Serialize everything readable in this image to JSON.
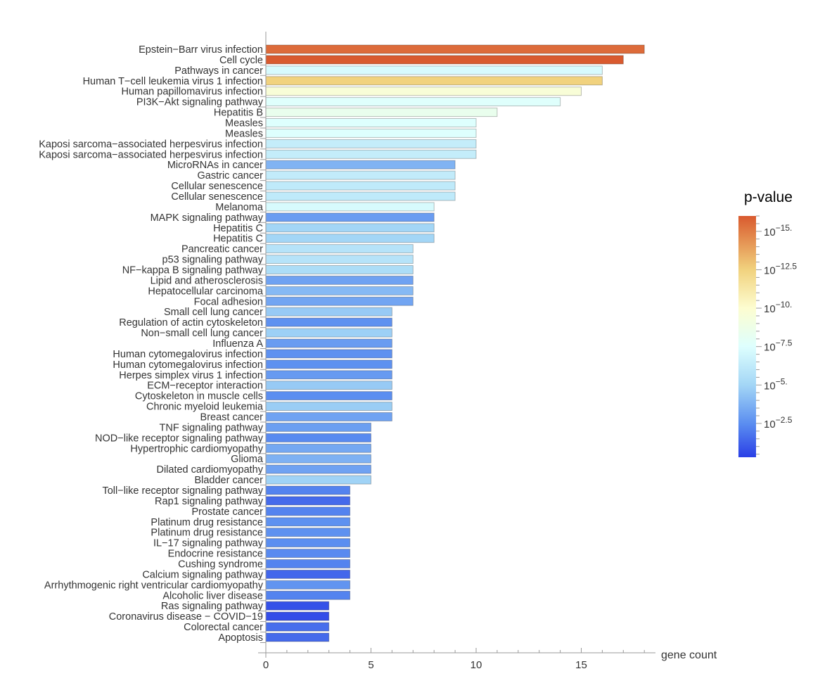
{
  "chart_data": {
    "type": "bar",
    "orientation": "horizontal",
    "xlabel": "gene count",
    "xlim": [
      0,
      18
    ],
    "xticks": [
      0,
      5,
      10,
      15
    ],
    "grid": false,
    "color_legend": {
      "title": "p-value",
      "placement": "right",
      "scale": "log10",
      "range_log10": [
        -16,
        -0.3
      ],
      "ticks": [
        {
          "exp": -15,
          "label": "10",
          "sup": "−15."
        },
        {
          "exp": -12.5,
          "label": "10",
          "sup": "−12.5"
        },
        {
          "exp": -10,
          "label": "10",
          "sup": "−10."
        },
        {
          "exp": -7.5,
          "label": "10",
          "sup": "−7.5"
        },
        {
          "exp": -5,
          "label": "10",
          "sup": "−5."
        },
        {
          "exp": -2.5,
          "label": "10",
          "sup": "−2.5"
        }
      ],
      "colors": [
        {
          "at": -0.3,
          "color": "#2a3fe6"
        },
        {
          "at": -2.5,
          "color": "#5b8ef0"
        },
        {
          "at": -5,
          "color": "#a3d6f6"
        },
        {
          "at": -7.5,
          "color": "#defffe"
        },
        {
          "at": -10,
          "color": "#fdfdd0"
        },
        {
          "at": -12.5,
          "color": "#f1d27e"
        },
        {
          "at": -15,
          "color": "#e07c44"
        },
        {
          "at": -16,
          "color": "#d95a2f"
        }
      ]
    },
    "categories": [
      "Epstein−Barr virus infection",
      "Cell cycle",
      "Pathways in cancer",
      "Human T−cell leukemia virus 1 infection",
      "Human papillomavirus infection",
      "PI3K−Akt signaling pathway",
      "Hepatitis B",
      "Measles",
      "Measles",
      "Kaposi sarcoma−associated herpesvirus infection",
      "Kaposi sarcoma−associated herpesvirus infection",
      "MicroRNAs in cancer",
      "Gastric cancer",
      "Cellular senescence",
      "Cellular senescence",
      "Melanoma",
      "MAPK signaling pathway",
      "Hepatitis C",
      "Hepatitis C",
      "Pancreatic cancer",
      "p53 signaling pathway",
      "NF−kappa B signaling pathway",
      "Lipid and atherosclerosis",
      "Hepatocellular carcinoma",
      "Focal adhesion",
      "Small cell lung cancer",
      "Regulation of actin cytoskeleton",
      "Non−small cell lung cancer",
      "Influenza A",
      "Human cytomegalovirus infection",
      "Human cytomegalovirus infection",
      "Herpes simplex virus 1 infection",
      "ECM−receptor interaction",
      "Cytoskeleton in muscle cells",
      "Chronic myeloid leukemia",
      "Breast cancer",
      "TNF signaling pathway",
      "NOD−like receptor signaling pathway",
      "Hypertrophic cardiomyopathy",
      "Glioma",
      "Dilated cardiomyopathy",
      "Bladder cancer",
      "Toll−like receptor signaling pathway",
      "Rap1 signaling pathway",
      "Prostate cancer",
      "Platinum drug resistance",
      "Platinum drug resistance",
      "IL−17 signaling pathway",
      "Endocrine resistance",
      "Cushing syndrome",
      "Calcium signaling pathway",
      "Arrhythmogenic right ventricular cardiomyopathy",
      "Alcoholic liver disease",
      "Ras signaling pathway",
      "Coronavirus disease − COVID−19",
      "Colorectal cancer",
      "Apoptosis"
    ],
    "values": [
      18,
      17,
      16,
      16,
      15,
      14,
      11,
      10,
      10,
      10,
      10,
      9,
      9,
      9,
      9,
      8,
      8,
      8,
      8,
      7,
      7,
      7,
      7,
      7,
      7,
      6,
      6,
      6,
      6,
      6,
      6,
      6,
      6,
      6,
      6,
      6,
      5,
      5,
      5,
      5,
      5,
      5,
      4,
      4,
      4,
      4,
      4,
      4,
      4,
      4,
      4,
      4,
      4,
      3,
      3,
      3,
      3
    ],
    "pvalue_log10": [
      -15.5,
      -16,
      -7.2,
      -12.5,
      -9.6,
      -7.6,
      -8.4,
      -7.5,
      -7.5,
      -6.4,
      -6.4,
      -3.8,
      -6.3,
      -6.2,
      -6.2,
      -7.2,
      -3.0,
      -5.0,
      -5.0,
      -5.8,
      -5.8,
      -5.4,
      -3.2,
      -4.0,
      -3.3,
      -4.6,
      -2.6,
      -4.8,
      -3.0,
      -2.6,
      -2.6,
      -2.9,
      -4.6,
      -2.5,
      -4.7,
      -3.2,
      -3.1,
      -2.4,
      -3.4,
      -3.7,
      -3.2,
      -4.9,
      -2.2,
      -1.5,
      -2.2,
      -2.6,
      -2.6,
      -2.5,
      -2.4,
      -2.2,
      -1.4,
      -2.7,
      -2.2,
      -0.8,
      -0.7,
      -1.6,
      -1.5
    ]
  }
}
